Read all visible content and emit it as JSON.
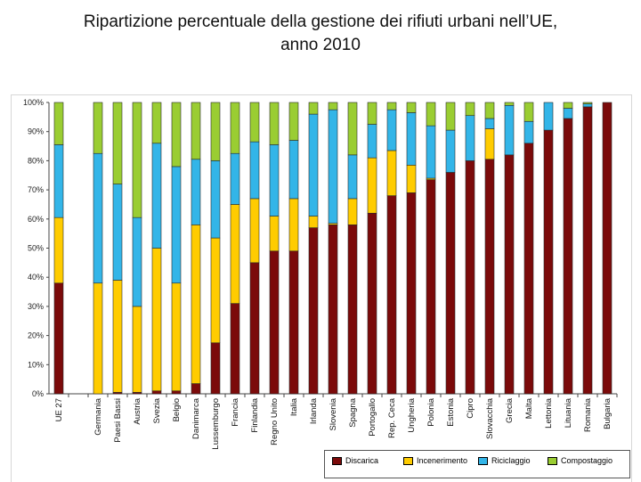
{
  "title_lines": [
    "Ripartizione percentuale della gestione dei rifiuti urbani nell’UE,",
    "anno 2010"
  ],
  "chart_data": {
    "type": "bar",
    "stacked": true,
    "title": "Ripartizione percentuale della gestione dei rifiuti urbani nell’UE, anno 2010",
    "xlabel": "",
    "ylabel": "",
    "ylim": [
      0,
      100
    ],
    "yticks": [
      "0%",
      "10%",
      "20%",
      "30%",
      "40%",
      "50%",
      "60%",
      "70%",
      "80%",
      "90%",
      "100%"
    ],
    "legend_position": "bottom-right",
    "categories": [
      "UE 27",
      "",
      "Germania",
      "Paesi Bassi",
      "Austria",
      "Svezia",
      "Belgio",
      "Danimarca",
      "Lussemburgo",
      "Francia",
      "Finlandia",
      "Regno Unito",
      "Italia",
      "Irlanda",
      "Slovenia",
      "Spagna",
      "Portogallo",
      "Rep. Ceca",
      "Ungheria",
      "Polonia",
      "Estonia",
      "Cipro",
      "Slovacchia",
      "Grecia",
      "Malta",
      "Lettonia",
      "Lituania",
      "Romania",
      "Bulgaria"
    ],
    "series": [
      {
        "name": "Discarica",
        "color": "#7b0a0a",
        "values": [
          38,
          0,
          0,
          0.5,
          0.5,
          1,
          1,
          3.5,
          17.5,
          31,
          45,
          49,
          49,
          57,
          58,
          58,
          62,
          68,
          69,
          73.5,
          76,
          80,
          80.5,
          82,
          86,
          90.5,
          94.5,
          98.5,
          100
        ]
      },
      {
        "name": "Incenerimento",
        "color": "#ffcc00",
        "values": [
          22.5,
          0,
          38,
          38.5,
          29.5,
          49,
          37,
          54.5,
          36,
          34,
          22,
          12,
          18,
          4,
          0.5,
          9,
          19,
          15.5,
          9.5,
          0.5,
          0,
          0,
          10.5,
          0,
          0,
          0,
          0,
          0,
          0
        ]
      },
      {
        "name": "Riciclaggio",
        "color": "#33b5e8",
        "values": [
          25,
          0,
          44.5,
          33,
          30.5,
          36,
          40,
          22.5,
          26.5,
          17.5,
          19.5,
          24.5,
          20,
          35,
          39,
          15,
          11.5,
          14,
          18,
          18,
          14.5,
          15.5,
          3.5,
          17,
          7.5,
          9.5,
          3.5,
          1,
          0
        ]
      },
      {
        "name": "Compostaggio",
        "color": "#9acd32",
        "values": [
          14.5,
          0,
          17.5,
          28,
          39.5,
          14,
          22,
          19.5,
          20,
          17.5,
          13.5,
          14.5,
          13,
          4,
          2.5,
          18,
          7.5,
          2.5,
          3.5,
          8,
          9.5,
          4.5,
          5.5,
          1,
          6.5,
          0,
          2,
          0.5,
          0
        ]
      }
    ]
  }
}
